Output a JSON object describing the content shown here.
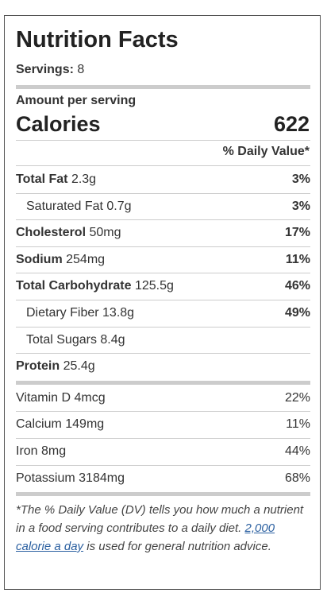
{
  "header": {
    "title": "Nutrition Facts",
    "servings_label": "Servings:",
    "servings": "8"
  },
  "amount_per_serving": "Amount per serving",
  "calories": {
    "label": "Calories",
    "value": "622"
  },
  "daily_value_header": "% Daily Value*",
  "nutrients": [
    {
      "label": "Total Fat",
      "amount": "2.3g",
      "dv": "3%"
    },
    {
      "label": "Saturated Fat",
      "amount": "0.7g",
      "dv": "3%",
      "indent": true
    },
    {
      "label": "Cholesterol",
      "amount": "50mg",
      "dv": "17%"
    },
    {
      "label": "Sodium",
      "amount": "254mg",
      "dv": "11%"
    },
    {
      "label": "Total Carbohydrate",
      "amount": "125.5g",
      "dv": "46%"
    },
    {
      "label": "Dietary Fiber",
      "amount": "13.8g",
      "dv": "49%",
      "indent": true
    },
    {
      "label": "Total Sugars",
      "amount": "8.4g",
      "indent": true
    },
    {
      "label": "Protein",
      "amount": "25.4g"
    }
  ],
  "vitamins": [
    {
      "label": "Vitamin D",
      "amount": "4mcg",
      "dv": "22%"
    },
    {
      "label": "Calcium",
      "amount": "149mg",
      "dv": "11%"
    },
    {
      "label": "Iron",
      "amount": "8mg",
      "dv": "44%"
    },
    {
      "label": "Potassium",
      "amount": "3184mg",
      "dv": "68%"
    }
  ],
  "footnote": {
    "before": "*The % Daily Value (DV) tells you how much a nutrient in a food serving contributes to a daily diet.",
    "link": "2,000 calorie a day",
    "after": "is used for general nutrition advice."
  }
}
